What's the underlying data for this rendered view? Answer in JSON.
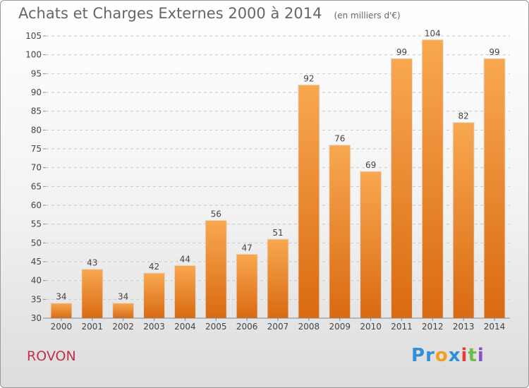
{
  "title": "Achats et Charges Externes 2000 à 2014",
  "subtitle": "(en milliers d'€)",
  "commune": "ROVON",
  "logo": {
    "letters": [
      "P",
      "r",
      "o",
      "x",
      "i",
      "t",
      "i"
    ],
    "colors": [
      "#2f8fd8",
      "#2f8fd8",
      "#f0a020",
      "#2f8fd8",
      "#e83a3a",
      "#6cc04a",
      "#8a4fc8"
    ]
  },
  "colors": {
    "bar": "#f08a2c",
    "title": "#666666",
    "commune": "#c0314a"
  },
  "chart_data": {
    "type": "bar",
    "title": "Achats et Charges Externes 2000 à 2014",
    "subtitle": "(en milliers d'€)",
    "categories": [
      "2000",
      "2001",
      "2002",
      "2003",
      "2004",
      "2005",
      "2006",
      "2007",
      "2008",
      "2009",
      "2010",
      "2011",
      "2012",
      "2013",
      "2014"
    ],
    "values": [
      34,
      43,
      34,
      42,
      44,
      56,
      47,
      51,
      92,
      76,
      69,
      99,
      104,
      82,
      99
    ],
    "ylim": [
      30,
      105
    ],
    "yticks": [
      30,
      35,
      40,
      45,
      50,
      55,
      60,
      65,
      70,
      75,
      80,
      85,
      90,
      95,
      100,
      105
    ],
    "grid": true,
    "xlabel": "",
    "ylabel": ""
  }
}
